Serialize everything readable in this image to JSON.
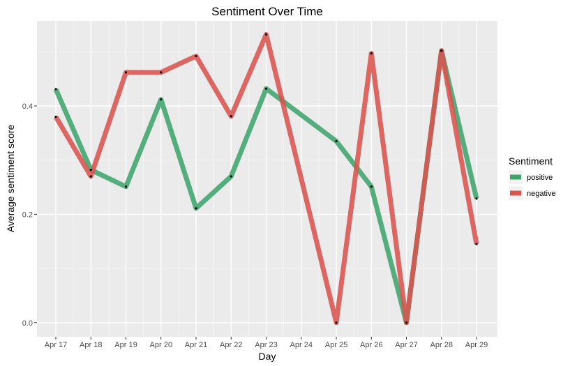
{
  "chart_data": {
    "type": "line",
    "title": "Sentiment Over Time",
    "xlabel": "Day",
    "ylabel": "Average sentiment score",
    "categories": [
      "Apr 17",
      "Apr 18",
      "Apr 19",
      "Apr 20",
      "Apr 21",
      "Apr 22",
      "Apr 23",
      "Apr 24",
      "Apr 25",
      "Apr 26",
      "Apr 27",
      "Apr 28",
      "Apr 29"
    ],
    "ylim": [
      -0.026,
      0.557
    ],
    "yticks": [
      0.0,
      0.2,
      0.4
    ],
    "ytick_labels": [
      "0.0",
      "0.2",
      "0.4"
    ],
    "grid": true,
    "legend": {
      "title": "Sentiment",
      "placement": "right"
    },
    "series": [
      {
        "name": "positive",
        "color": "#3fa46c",
        "values": [
          0.431,
          0.282,
          0.251,
          0.412,
          0.211,
          0.27,
          0.432,
          null,
          0.335,
          0.251,
          0.0,
          0.502,
          0.229
        ]
      },
      {
        "name": "negative",
        "color": "#d9534f",
        "values": [
          0.38,
          0.27,
          0.462,
          0.462,
          0.492,
          0.381,
          0.532,
          null,
          0.0,
          0.497,
          0.0,
          0.502,
          0.145
        ]
      }
    ]
  }
}
